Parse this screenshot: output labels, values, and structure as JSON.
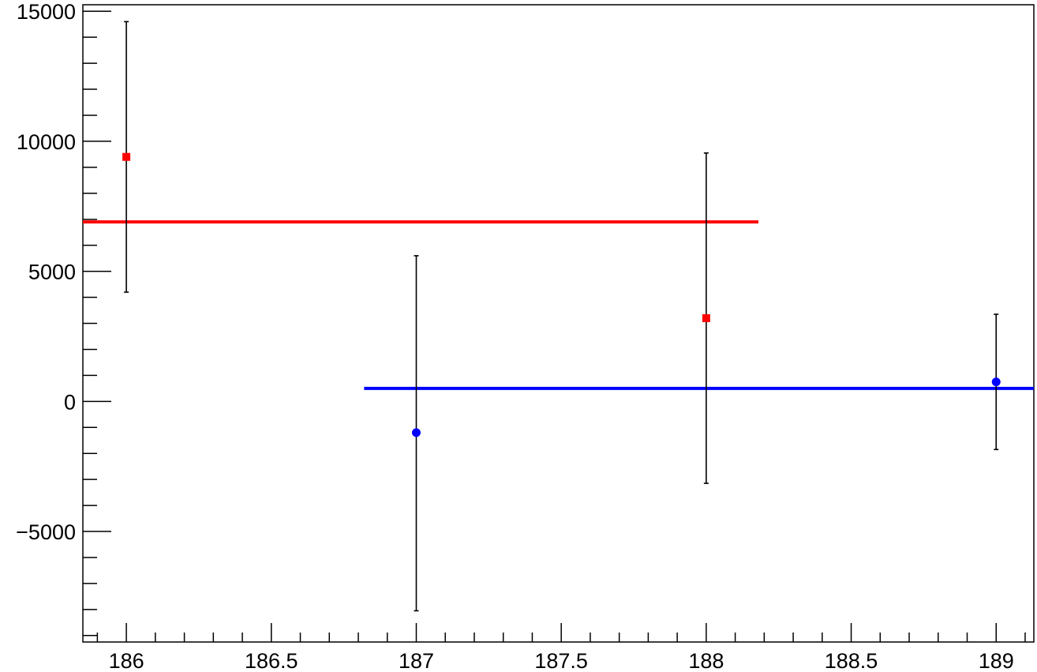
{
  "chart_data": {
    "type": "scatter",
    "title": "",
    "xlabel": "",
    "ylabel": "",
    "xlim": [
      185.85,
      189.13
    ],
    "ylim": [
      -9250,
      15250
    ],
    "grid": false,
    "legend": "none",
    "x_ticks": [
      186,
      186.5,
      187,
      187.5,
      188,
      188.5,
      189
    ],
    "x_tick_labels": [
      "186",
      "186.5",
      "187",
      "187.5",
      "188",
      "188.5",
      "189"
    ],
    "y_ticks": [
      -5000,
      0,
      5000,
      10000,
      15000
    ],
    "y_tick_labels": [
      "−5000",
      "0",
      "5000",
      "10000",
      "15000"
    ],
    "series": [
      {
        "marker": "square",
        "color": "#ff0000",
        "points": [
          {
            "x": 186,
            "y": 9400,
            "ylow": 4200,
            "yhigh": 14600
          },
          {
            "x": 188,
            "y": 3200,
            "ylow": -3150,
            "yhigh": 9550
          }
        ],
        "fit": {
          "value": 6900,
          "xmin": 185.85,
          "xmax": 188.18
        }
      },
      {
        "marker": "circle",
        "color": "#0000ff",
        "points": [
          {
            "x": 187,
            "y": -1200,
            "ylow": -8050,
            "yhigh": 5600
          },
          {
            "x": 189,
            "y": 750,
            "ylow": -1850,
            "yhigh": 3350
          }
        ],
        "fit": {
          "value": 500,
          "xmin": 186.82,
          "xmax": 189.13
        }
      }
    ]
  }
}
